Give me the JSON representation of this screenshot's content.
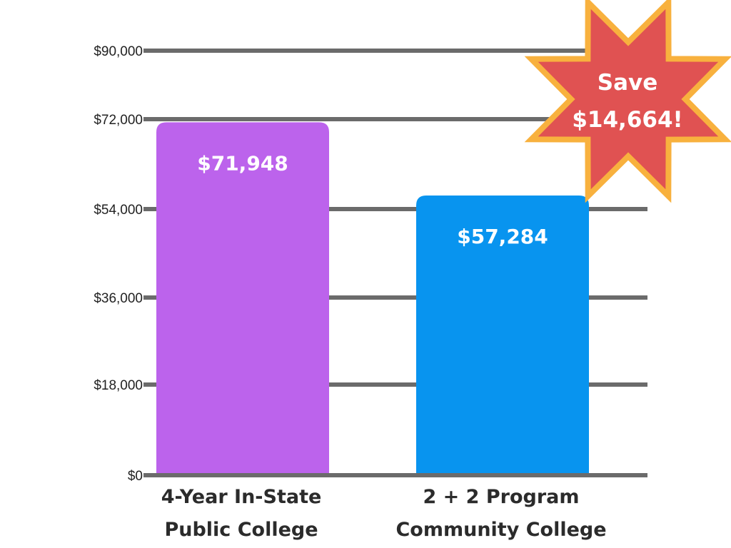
{
  "chart_data": {
    "type": "bar",
    "categories": [
      [
        "4-Year In-State",
        "Public College"
      ],
      [
        "2 + 2 Program",
        "Community College"
      ]
    ],
    "values": [
      71948,
      57284
    ],
    "data_labels": [
      "$71,948",
      "$57,284"
    ],
    "colors": [
      "#bc63ec",
      "#0894ef"
    ],
    "ylim": [
      0,
      90000
    ],
    "yticks": [
      0,
      18000,
      36000,
      54000,
      72000,
      90000
    ],
    "ytick_labels": [
      "$0",
      "$18,000",
      "$36,000",
      "$54,000",
      "$72,000",
      "$90,000"
    ],
    "grid": true,
    "gridline_color": "#6b6b6b",
    "title": "",
    "xlabel": "",
    "ylabel": "",
    "annotation": {
      "lines": [
        "Save",
        "$14,664!"
      ],
      "shape": "eight-point-starburst",
      "fill": "#e05252",
      "stroke": "#f8b13e",
      "position": "top-right"
    }
  }
}
